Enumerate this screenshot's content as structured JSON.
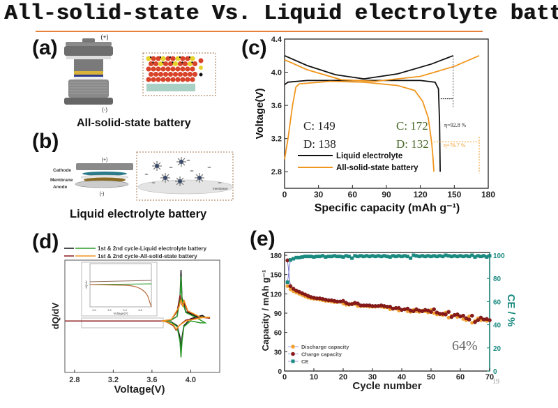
{
  "slide": {
    "title": "All-solid-state Vs. Liquid electrolyte batt",
    "page_number": "19",
    "accent_color": "#e8823a"
  },
  "panel_a": {
    "label": "(a)",
    "plus": "(+)",
    "minus": "(-)",
    "caption": "All-solid-state battery"
  },
  "panel_b": {
    "label": "(b)",
    "plus": "(+)",
    "minus": "(-)",
    "cathode": "Cathode",
    "membrane": "Membrane",
    "anode": "Anode",
    "membrane_inset": "membrane",
    "caption": "Liquid electrolyte battery"
  },
  "panel_labels": {
    "c": "(c)",
    "d": "(d)",
    "e": "(e)"
  },
  "chart_data": [
    {
      "id": "c",
      "type": "line",
      "xlabel": "Specific capacity (mAh g⁻¹)",
      "ylabel": "Voltage(V)",
      "xlim": [
        0,
        180
      ],
      "ylim": [
        2.6,
        4.4
      ],
      "xticks": [
        0,
        30,
        60,
        90,
        120,
        150,
        180
      ],
      "yticks": [
        "2.8",
        "3.2",
        "3.6",
        "4.0",
        "4.4"
      ],
      "legend": [
        "Liquid electrolyte",
        "All-solid-state battery"
      ],
      "legend_position": "bottom-left",
      "colors": {
        "liquid": "#111111",
        "solid": "#f0961e",
        "green_text": "#4a6b2a"
      },
      "annotations": {
        "liquid_charge": "C:  149",
        "liquid_discharge": "D:  138",
        "solid_charge": "C:  172",
        "solid_discharge": "D:  132",
        "eta_liquid": "η=92.8 %",
        "eta_solid": "η=76.7 %"
      },
      "series": [
        {
          "name": "Liquid electrolyte (charge)",
          "color": "#111111",
          "points": [
            [
              0,
              4.2
            ],
            [
              20,
              4.08
            ],
            [
              45,
              3.97
            ],
            [
              70,
              3.92
            ],
            [
              100,
              3.98
            ],
            [
              130,
              4.1
            ],
            [
              149,
              4.2
            ]
          ]
        },
        {
          "name": "Liquid electrolyte (discharge)",
          "color": "#111111",
          "points": [
            [
              0,
              3.85
            ],
            [
              3,
              3.88
            ],
            [
              20,
              3.9
            ],
            [
              80,
              3.9
            ],
            [
              120,
              3.9
            ],
            [
              133,
              3.88
            ],
            [
              136,
              3.8
            ],
            [
              137,
              3.4
            ],
            [
              137.5,
              2.8
            ]
          ]
        },
        {
          "name": "All-solid-state battery (charge)",
          "color": "#f0961e",
          "points": [
            [
              0,
              4.15
            ],
            [
              20,
              4.03
            ],
            [
              50,
              3.91
            ],
            [
              80,
              3.89
            ],
            [
              120,
              3.95
            ],
            [
              150,
              4.07
            ],
            [
              172,
              4.2
            ]
          ]
        },
        {
          "name": "All-solid-state battery (discharge)",
          "color": "#f0961e",
          "points": [
            [
              0,
              2.95
            ],
            [
              3,
              3.2
            ],
            [
              7,
              3.6
            ],
            [
              10,
              3.82
            ],
            [
              13,
              3.86
            ],
            [
              40,
              3.89
            ],
            [
              70,
              3.88
            ],
            [
              100,
              3.84
            ],
            [
              115,
              3.78
            ],
            [
              122,
              3.65
            ],
            [
              127,
              3.45
            ],
            [
              130,
              3.15
            ],
            [
              131,
              3.0
            ],
            [
              132,
              2.8
            ]
          ]
        }
      ]
    },
    {
      "id": "d",
      "type": "line",
      "xlabel": "Voltage(V)",
      "ylabel": "dQ/dV",
      "xlim": [
        2.7,
        4.3
      ],
      "ylim": [
        -1.1,
        1.3
      ],
      "xticks": [
        "2.8",
        "3.2",
        "3.6",
        "4.0"
      ],
      "legend": [
        "1st & 2nd cycle-Liquid electrolyte battery",
        "1st & 2nd cycle-All-solid-state battery"
      ],
      "legend_position": "top",
      "inset": {
        "xlabel": "Voltage(V)",
        "ylabel": "dQ/dV",
        "xticks": [
          "3.0",
          "3.2",
          "3.4",
          "3.6"
        ]
      },
      "series": [
        {
          "name": "Liquid 1st cycle",
          "color": "#111111",
          "points": [
            [
              2.7,
              0
            ],
            [
              3.7,
              0
            ],
            [
              3.8,
              0.02
            ],
            [
              3.86,
              0.1
            ],
            [
              3.89,
              0.5
            ],
            [
              3.9,
              1.09
            ],
            [
              3.91,
              0.5
            ],
            [
              3.95,
              0.2
            ],
            [
              4.05,
              0.1
            ],
            [
              4.15,
              0.08
            ],
            [
              4.12,
              0.12
            ],
            [
              4.0,
              0.05
            ],
            [
              3.93,
              -0.1
            ],
            [
              3.91,
              -0.35
            ],
            [
              3.9,
              -0.6
            ],
            [
              3.89,
              -0.35
            ],
            [
              3.86,
              -0.1
            ],
            [
              3.8,
              -0.02
            ],
            [
              3.7,
              0
            ]
          ]
        },
        {
          "name": "Liquid 2nd cycle",
          "color": "#2a9a2a",
          "points": [
            [
              3.7,
              0
            ],
            [
              3.8,
              0.02
            ],
            [
              3.86,
              0.1
            ],
            [
              3.89,
              0.45
            ],
            [
              3.9,
              0.95
            ],
            [
              3.91,
              0.45
            ],
            [
              3.95,
              0.18
            ],
            [
              4.05,
              0.08
            ],
            [
              4.15,
              -0.04
            ],
            [
              4.1,
              -0.04
            ],
            [
              4.0,
              0.0
            ],
            [
              3.93,
              -0.12
            ],
            [
              3.91,
              -0.45
            ],
            [
              3.9,
              -0.78
            ],
            [
              3.89,
              -0.45
            ],
            [
              3.86,
              -0.12
            ],
            [
              3.8,
              -0.03
            ],
            [
              3.7,
              0
            ]
          ]
        },
        {
          "name": "Solid 1st cycle",
          "color": "#8b1a1a",
          "points": [
            [
              2.7,
              0
            ],
            [
              3.7,
              0
            ],
            [
              3.8,
              0.03
            ],
            [
              3.86,
              0.2
            ],
            [
              3.89,
              0.55
            ],
            [
              3.91,
              0.35
            ],
            [
              3.93,
              0.4
            ],
            [
              3.97,
              0.2
            ],
            [
              4.1,
              0.08
            ],
            [
              4.2,
              0.06
            ],
            [
              4.12,
              0.08
            ],
            [
              3.95,
              0.02
            ],
            [
              3.88,
              -0.1
            ],
            [
              3.85,
              -0.2
            ],
            [
              3.82,
              -0.1
            ],
            [
              3.75,
              -0.02
            ],
            [
              3.7,
              0
            ]
          ]
        },
        {
          "name": "Solid 2nd cycle",
          "color": "#f0961e",
          "points": [
            [
              3.7,
              0
            ],
            [
              3.8,
              0.03
            ],
            [
              3.88,
              0.3
            ],
            [
              3.9,
              0.45
            ],
            [
              3.92,
              0.3
            ],
            [
              3.93,
              0.45
            ],
            [
              3.97,
              0.22
            ],
            [
              4.1,
              0.08
            ],
            [
              4.2,
              0.08
            ],
            [
              4.12,
              0.07
            ],
            [
              3.95,
              0.0
            ],
            [
              3.88,
              -0.1
            ],
            [
              3.85,
              -0.18
            ],
            [
              3.82,
              -0.08
            ],
            [
              3.75,
              -0.02
            ],
            [
              3.7,
              0
            ]
          ]
        }
      ]
    },
    {
      "id": "e",
      "type": "scatter",
      "xlabel": "Cycle number",
      "ylabel": "Capacity / mAh g⁻¹",
      "y2label": "CE / %",
      "xlim": [
        0,
        70
      ],
      "ylim": [
        0,
        180
      ],
      "y2lim": [
        0,
        100
      ],
      "xticks": [
        0,
        10,
        20,
        30,
        40,
        50,
        60,
        70
      ],
      "yticks": [
        0,
        30,
        60,
        90,
        120,
        150,
        180
      ],
      "y2ticks": [
        0,
        20,
        40,
        60,
        80,
        100
      ],
      "legend": [
        "Discharge capacity",
        "Charge capacity",
        "CE"
      ],
      "legend_position": "bottom-left",
      "annotation": "64%",
      "colors": {
        "discharge": "#f4a030",
        "charge": "#8b1a1a",
        "ce": "#1a8a80"
      },
      "series": [
        {
          "name": "Charge capacity",
          "values": [
            172,
            132,
            128,
            125,
            123,
            121,
            119,
            117,
            115,
            114,
            113,
            113,
            112,
            111,
            110,
            110,
            109,
            108,
            108,
            109,
            106,
            104,
            104,
            106,
            105,
            102,
            102,
            102,
            102,
            101,
            101,
            101,
            102,
            101,
            100,
            100,
            97,
            98,
            98,
            95,
            96,
            97,
            94,
            93,
            96,
            94,
            93,
            95,
            94,
            92,
            96,
            91,
            89,
            89,
            88,
            92,
            84,
            87,
            88,
            85,
            86,
            82,
            80,
            86,
            76,
            79,
            83,
            80,
            81,
            79
          ]
        },
        {
          "name": "Discharge capacity",
          "values": [
            132,
            127,
            124,
            122,
            120,
            118,
            116,
            114,
            113,
            112,
            112,
            111,
            110,
            109,
            109,
            108,
            107,
            107,
            108,
            105,
            103,
            103,
            105,
            104,
            101,
            101,
            101,
            101,
            100,
            100,
            100,
            101,
            100,
            99,
            99,
            96,
            97,
            97,
            94,
            95,
            96,
            93,
            92,
            95,
            93,
            92,
            94,
            93,
            91,
            95,
            90,
            88,
            88,
            87,
            91,
            83,
            86,
            87,
            84,
            85,
            81,
            79,
            85,
            75,
            78,
            82,
            79,
            80,
            78,
            79
          ]
        },
        {
          "name": "CE",
          "values": [
            76.7,
            96,
            97,
            98,
            98,
            98.5,
            99,
            99,
            99,
            98.5,
            99,
            99,
            99.5,
            98.5,
            99,
            99,
            99.5,
            99,
            99,
            98.5,
            99.5,
            99,
            97.5,
            99.5,
            99,
            99.5,
            99,
            99.5,
            99,
            99.5,
            99,
            99.5,
            99,
            99.5,
            99,
            98.5,
            99.5,
            99,
            99.5,
            99,
            99.5,
            99,
            97.5,
            100,
            99.5,
            99,
            99.5,
            99,
            99.5,
            99,
            99.5,
            99,
            99.5,
            99,
            100,
            99.5,
            99,
            99.5,
            99,
            99.5,
            99,
            99.5,
            99,
            100,
            98.5,
            99.5,
            99,
            99.5,
            98.5,
            99.5
          ]
        }
      ]
    }
  ]
}
